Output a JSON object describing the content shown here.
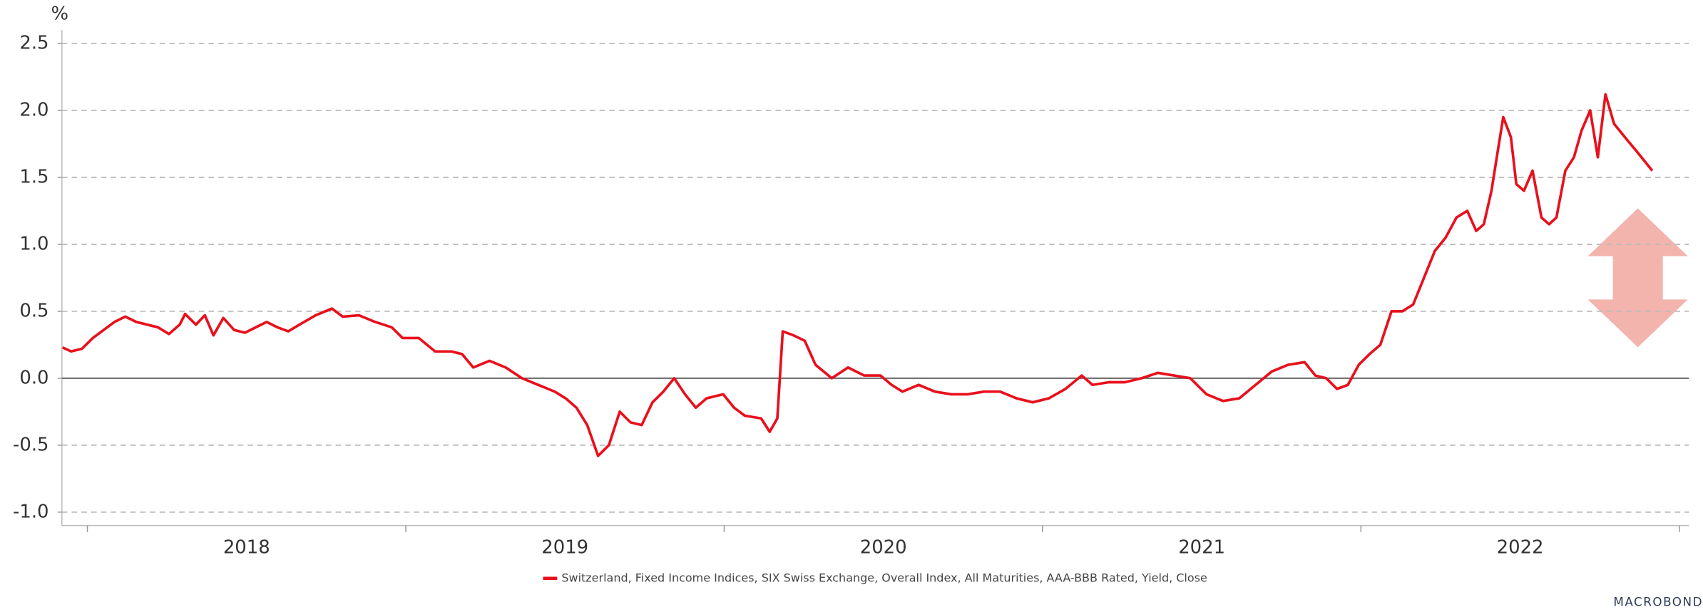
{
  "chart_data": {
    "type": "line",
    "y_label": "%",
    "ylim": [
      -1.1,
      2.6
    ],
    "yticks": [
      {
        "value": -1,
        "label": "-1.0"
      },
      -0.5,
      {
        "value": 0,
        "label": "0.0"
      },
      0.5,
      {
        "value": 1,
        "label": "1.0"
      },
      1.5,
      {
        "value": 2,
        "label": "2.0"
      },
      2.5
    ],
    "xlim": [
      2017.92,
      2023.03
    ],
    "xticks": [
      {
        "value": 2018.5,
        "label": "2018"
      },
      {
        "value": 2019.5,
        "label": "2019"
      },
      {
        "value": 2020.5,
        "label": "2020"
      },
      {
        "value": 2021.5,
        "label": "2021"
      },
      {
        "value": 2022.5,
        "label": "2022"
      }
    ],
    "xtick_marks": [
      2018,
      2019,
      2020,
      2021,
      2022,
      2023
    ],
    "grid": true,
    "source": "MACROBOND",
    "x": [
      2017.922,
      2017.949,
      2017.983,
      2018.017,
      2018.051,
      2018.085,
      2018.119,
      2018.154,
      2018.188,
      2018.222,
      2018.256,
      2018.29,
      2018.307,
      2018.341,
      2018.369,
      2018.396,
      2018.427,
      2018.461,
      2018.495,
      2018.529,
      2018.563,
      2018.597,
      2018.631,
      2018.666,
      2018.717,
      2018.768,
      2018.802,
      2018.853,
      2018.904,
      2018.956,
      2018.99,
      2019.041,
      2019.092,
      2019.143,
      2019.177,
      2019.212,
      2019.263,
      2019.314,
      2019.365,
      2019.416,
      2019.468,
      2019.502,
      2019.536,
      2019.57,
      2019.604,
      2019.638,
      2019.672,
      2019.706,
      2019.741,
      2019.775,
      2019.809,
      2019.843,
      2019.877,
      2019.911,
      2019.945,
      2019.997,
      2020.031,
      2020.065,
      2020.116,
      2020.143,
      2020.167,
      2020.184,
      2020.218,
      2020.253,
      2020.287,
      2020.338,
      2020.389,
      2020.44,
      2020.491,
      2020.526,
      2020.56,
      2020.611,
      2020.662,
      2020.713,
      2020.765,
      2020.816,
      2020.867,
      2020.918,
      2020.969,
      2021.02,
      2021.072,
      2021.123,
      2021.157,
      2021.208,
      2021.259,
      2021.311,
      2021.362,
      2021.413,
      2021.464,
      2021.515,
      2021.567,
      2021.618,
      2021.669,
      2021.72,
      2021.771,
      2021.823,
      2021.857,
      2021.891,
      2021.925,
      2021.959,
      2021.993,
      2022.027,
      2022.061,
      2022.096,
      2022.13,
      2022.164,
      2022.198,
      2022.232,
      2022.266,
      2022.3,
      2022.334,
      2022.362,
      2022.386,
      2022.41,
      2022.43,
      2022.447,
      2022.471,
      2022.488,
      2022.512,
      2022.539,
      2022.567,
      2022.591,
      2022.614,
      2022.642,
      2022.669,
      2022.693,
      2022.72,
      2022.744,
      2022.768,
      2022.795,
      2022.829,
      2022.864,
      2022.898,
      2022.915
    ],
    "series": [
      {
        "name": "Switzerland, Fixed Income Indices, SIX Swiss Exchange, Overall Index, All Maturities, AAA-BBB Rated, Yield, Close",
        "color": "#e8101c",
        "values": [
          0.23,
          0.2,
          0.22,
          0.3,
          0.36,
          0.42,
          0.46,
          0.42,
          0.4,
          0.38,
          0.33,
          0.4,
          0.48,
          0.4,
          0.47,
          0.32,
          0.45,
          0.36,
          0.34,
          0.38,
          0.42,
          0.38,
          0.35,
          0.4,
          0.47,
          0.52,
          0.46,
          0.47,
          0.42,
          0.38,
          0.3,
          0.3,
          0.2,
          0.2,
          0.18,
          0.08,
          0.13,
          0.08,
          0.0,
          -0.05,
          -0.1,
          -0.15,
          -0.22,
          -0.35,
          -0.58,
          -0.5,
          -0.25,
          -0.33,
          -0.35,
          -0.18,
          -0.1,
          0.0,
          -0.12,
          -0.22,
          -0.15,
          -0.12,
          -0.22,
          -0.28,
          -0.3,
          -0.4,
          -0.3,
          0.35,
          0.32,
          0.28,
          0.1,
          0.0,
          0.08,
          0.02,
          0.02,
          -0.05,
          -0.1,
          -0.05,
          -0.1,
          -0.12,
          -0.12,
          -0.1,
          -0.1,
          -0.15,
          -0.18,
          -0.15,
          -0.08,
          0.02,
          -0.05,
          -0.03,
          -0.03,
          0.0,
          0.04,
          0.02,
          0.0,
          -0.12,
          -0.17,
          -0.15,
          -0.05,
          0.05,
          0.1,
          0.12,
          0.02,
          0.0,
          -0.08,
          -0.05,
          0.1,
          0.18,
          0.25,
          0.5,
          0.5,
          0.55,
          0.75,
          0.95,
          1.05,
          1.2,
          1.25,
          1.1,
          1.15,
          1.4,
          1.7,
          1.95,
          1.8,
          1.45,
          1.4,
          1.55,
          1.2,
          1.15,
          1.2,
          1.55,
          1.65,
          1.85,
          2.0,
          1.65,
          2.12,
          1.9,
          1.8,
          1.7,
          1.6,
          1.55
        ]
      }
    ]
  }
}
